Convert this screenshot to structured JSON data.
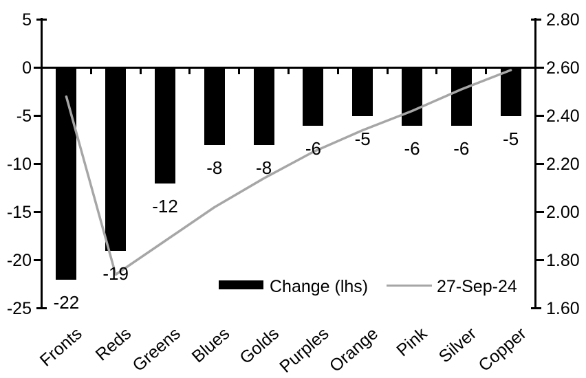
{
  "chart_data": {
    "type": "combo-bar-line",
    "categories": [
      "Fronts",
      "Reds",
      "Greens",
      "Blues",
      "Golds",
      "Purples",
      "Orange",
      "Pink",
      "Silver",
      "Copper"
    ],
    "series": [
      {
        "name": "Change (lhs)",
        "type": "bar",
        "axis": "left",
        "color": "#000000",
        "values": [
          -22,
          -19,
          -12,
          -8,
          -8,
          -6,
          -5,
          -6,
          -6,
          -5
        ],
        "data_labels": [
          "-22",
          "-19",
          "-12",
          "-8",
          "-8",
          "-6",
          "-5",
          "-6",
          "-6",
          "-5"
        ]
      },
      {
        "name": "27-Sep-24",
        "type": "line",
        "axis": "right",
        "color": "#a6a6a6",
        "values": [
          2.48,
          1.74,
          1.88,
          2.02,
          2.14,
          2.25,
          2.34,
          2.42,
          2.51,
          2.59
        ]
      }
    ],
    "left_axis": {
      "min": -25,
      "max": 5,
      "tick_values": [
        5,
        0,
        -5,
        -10,
        -15,
        -20,
        -25
      ],
      "tick_labels": [
        "5",
        "0",
        "-5",
        "-10",
        "-15",
        "-20",
        "-25"
      ]
    },
    "right_axis": {
      "min": 1.6,
      "max": 2.8,
      "tick_values": [
        2.8,
        2.6,
        2.4,
        2.2,
        2.0,
        1.8,
        1.6
      ],
      "tick_labels": [
        "2.80",
        "2.60",
        "2.40",
        "2.20",
        "2.00",
        "1.80",
        "1.60"
      ]
    },
    "grid": "off",
    "legend_position": "bottom-center",
    "colors": {
      "bar": "#000000",
      "line": "#a6a6a6",
      "axis": "#000000",
      "background": "#ffffff"
    }
  }
}
